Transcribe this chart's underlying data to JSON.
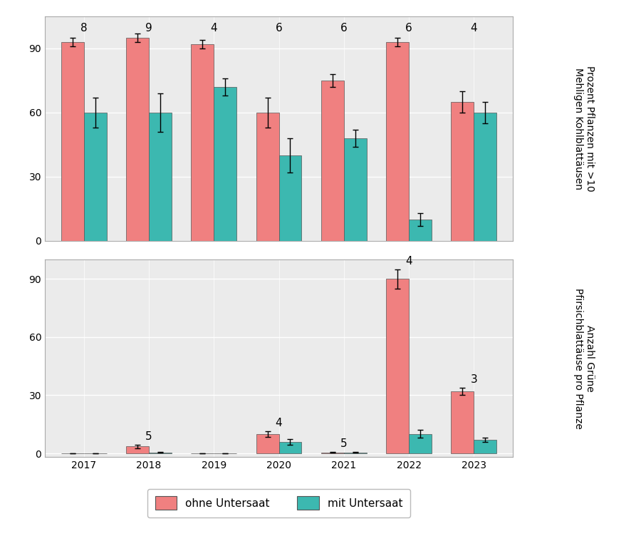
{
  "years": [
    2017,
    2018,
    2019,
    2020,
    2021,
    2022,
    2023
  ],
  "top_panel": {
    "ylabel_lines": [
      "Prozent Pflanzen mit >10",
      "Mehligen Kohlblattäusen"
    ],
    "ylim": [
      0,
      105
    ],
    "yticks": [
      0,
      30,
      60,
      90
    ],
    "ohne": [
      93,
      95,
      92,
      60,
      75,
      93,
      65
    ],
    "mit": [
      60,
      60,
      72,
      40,
      48,
      10,
      60
    ],
    "ohne_err": [
      2,
      2,
      2,
      7,
      3,
      2,
      5
    ],
    "mit_err": [
      7,
      9,
      4,
      8,
      4,
      3,
      5
    ],
    "n_labels": [
      8,
      9,
      4,
      6,
      6,
      6,
      4
    ]
  },
  "bottom_panel": {
    "ylabel_lines": [
      "Anzahl Grüne",
      "Pfirsichblattäuse pro Pflanze"
    ],
    "ylim": [
      -2,
      100
    ],
    "yticks": [
      0,
      30,
      60,
      90
    ],
    "ohne": [
      0,
      3.5,
      0,
      10,
      0.5,
      90,
      32
    ],
    "mit": [
      0,
      0.5,
      0,
      6,
      0.5,
      10,
      7
    ],
    "ohne_err": [
      0,
      1.0,
      0,
      1.5,
      0.3,
      5,
      2
    ],
    "mit_err": [
      0,
      0.3,
      0,
      1.5,
      0.3,
      2,
      1
    ],
    "n_labels": [
      null,
      5,
      null,
      4,
      5,
      4,
      3
    ]
  },
  "color_ohne": "#F08080",
  "color_mit": "#3CB8B0",
  "bar_width": 0.35,
  "panel_bg": "#ebebeb",
  "legend_ohne": "ohne Untersaat",
  "legend_mit": "mit Untersaat"
}
